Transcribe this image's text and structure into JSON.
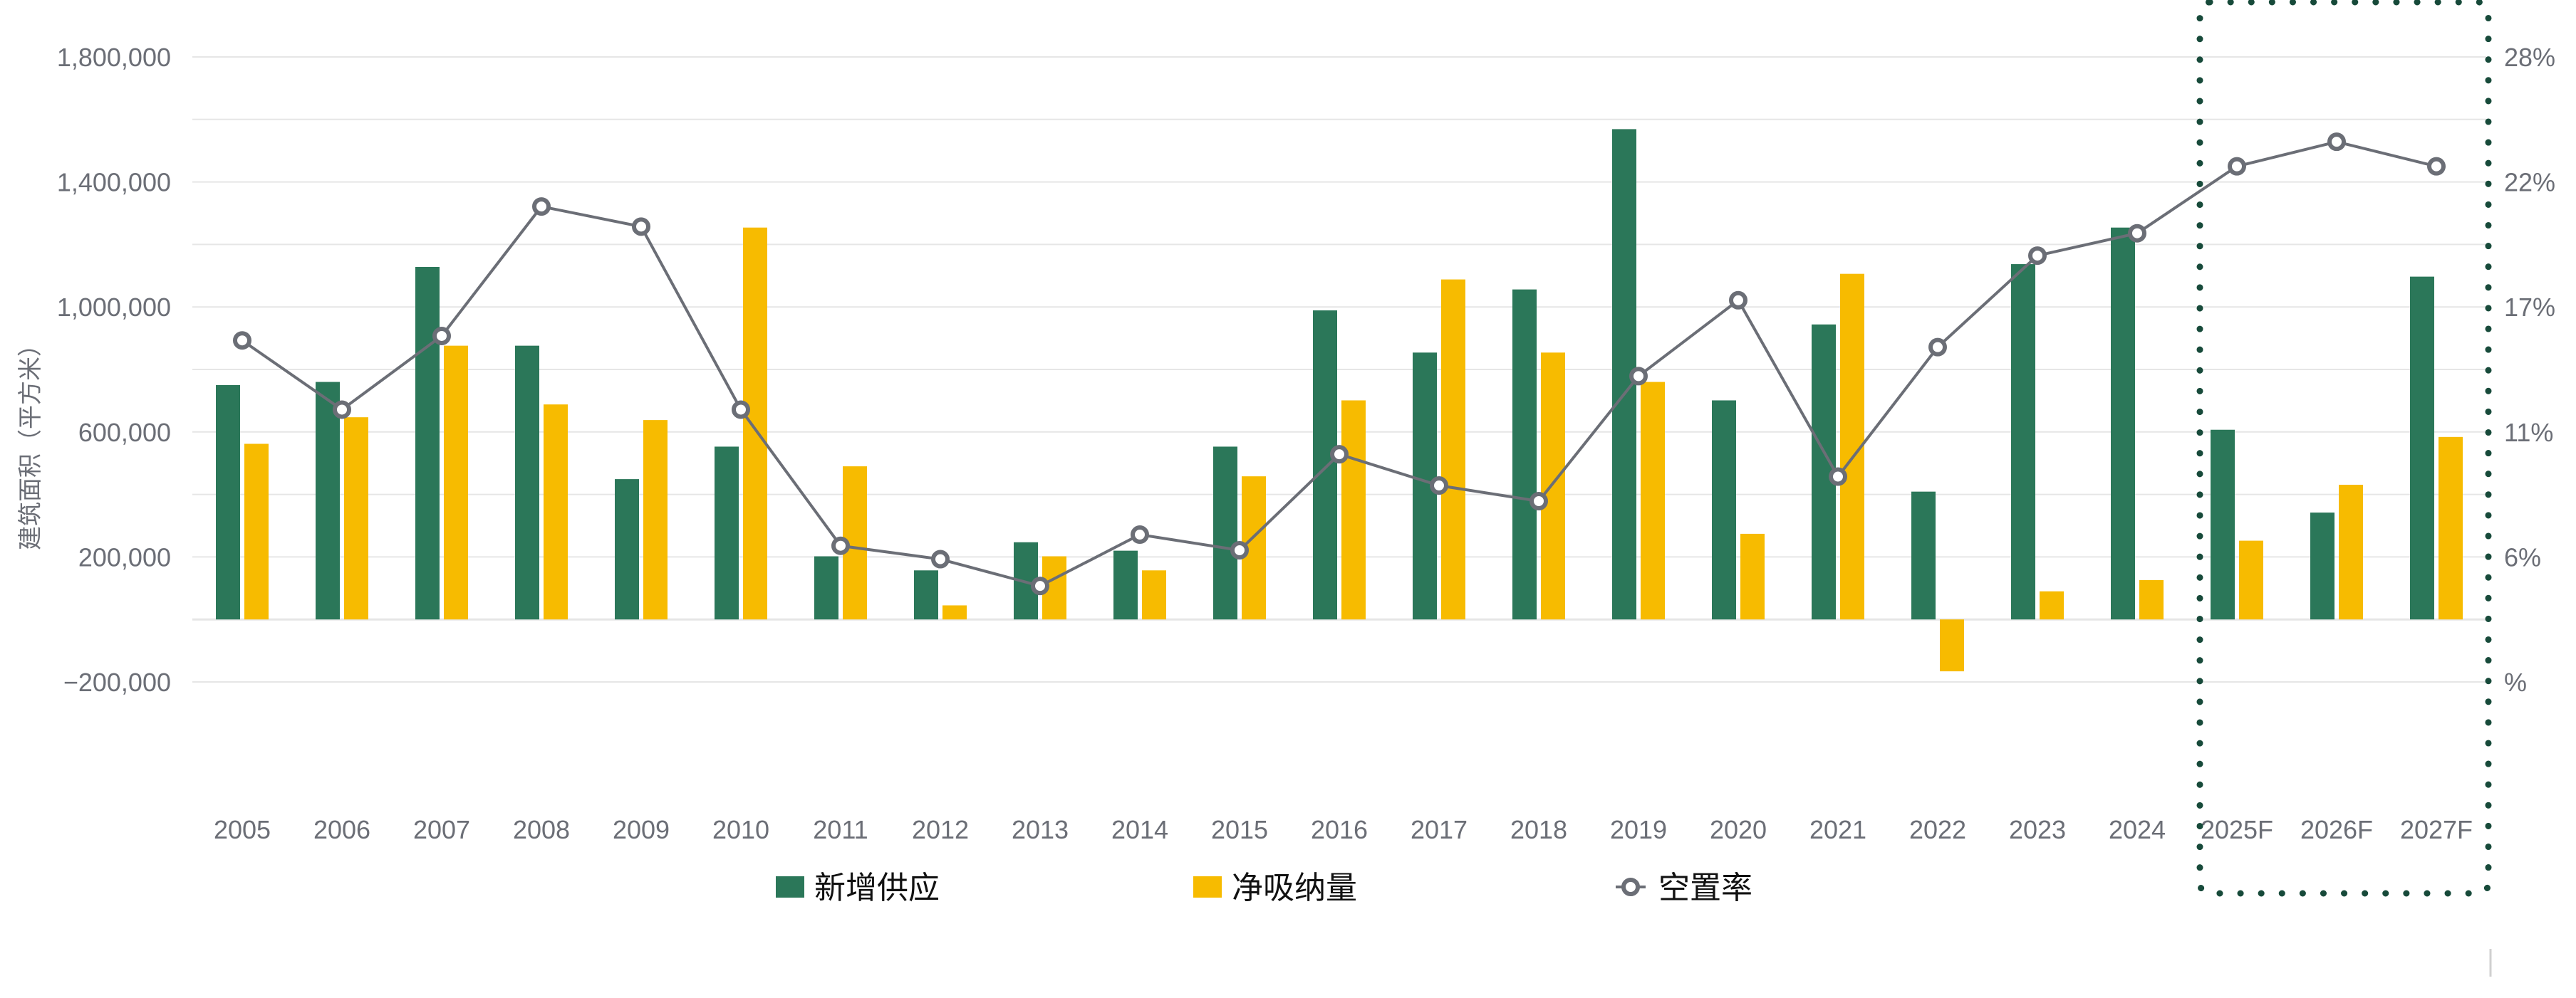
{
  "chart_data": {
    "type": "bar",
    "categories": [
      "2005",
      "2006",
      "2007",
      "2008",
      "2009",
      "2010",
      "2011",
      "2012",
      "2013",
      "2014",
      "2015",
      "2016",
      "2017",
      "2018",
      "2019",
      "2020",
      "2021",
      "2022",
      "2023",
      "2024",
      "2025F",
      "2026F",
      "2027F"
    ],
    "series": [
      {
        "name": "新增供应",
        "type": "bar",
        "axis": "left",
        "color": "#2b7759",
        "values": [
          750000,
          760000,
          1128000,
          876000,
          449000,
          553000,
          202000,
          157000,
          247000,
          220000,
          553000,
          989000,
          854000,
          1056000,
          1569000,
          701000,
          944000,
          409000,
          1137000,
          1254000,
          607000,
          342000,
          1097000
        ]
      },
      {
        "name": "净吸纳量",
        "type": "bar",
        "axis": "left",
        "color": "#f7bb00",
        "values": [
          562000,
          647000,
          876000,
          688000,
          638000,
          1254000,
          490000,
          45000,
          202000,
          157000,
          458000,
          701000,
          1088000,
          854000,
          760000,
          274000,
          1106000,
          -166000,
          90000,
          126000,
          252000,
          431000,
          584000
        ]
      },
      {
        "name": "空置率",
        "type": "line",
        "axis": "right",
        "color": "#6b6e76",
        "marker": "hollow-circle",
        "values": [
          15.3,
          12.2,
          15.5,
          21.3,
          20.4,
          12.2,
          6.1,
          5.5,
          4.3,
          6.6,
          5.9,
          10.2,
          8.8,
          8.1,
          13.7,
          17.1,
          9.2,
          15.0,
          19.1,
          20.1,
          23.1,
          24.2,
          23.1
        ]
      }
    ],
    "ylabel": "建筑面积（平方米）",
    "ylim": [
      -200000,
      1800000
    ],
    "y_ticks": [
      "1,800,000",
      "1,400,000",
      "1,000,000",
      "600,000",
      "200,000",
      "−200,000"
    ],
    "y_tick_values": [
      1800000,
      1400000,
      1000000,
      600000,
      200000,
      -200000
    ],
    "y2lim": [
      0,
      28
    ],
    "y2_ticks": [
      "28%",
      "22%",
      "17%",
      "11%",
      "6%",
      "%"
    ],
    "y2_tick_values": [
      28,
      22.4,
      16.8,
      11.2,
      5.6,
      0
    ],
    "grid": true,
    "legend_position": "bottom",
    "highlight": {
      "categories": [
        "2025F",
        "2026F",
        "2027F"
      ],
      "style": "dotted-box",
      "color": "#174a3a"
    },
    "gridline_color": "#e6e6e6"
  }
}
